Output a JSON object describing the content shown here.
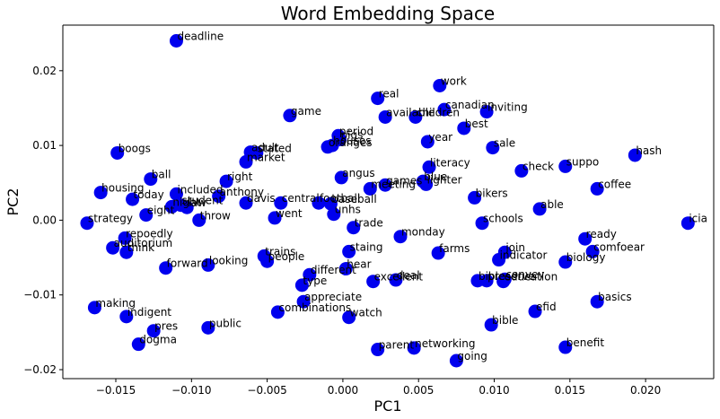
{
  "chart_data": {
    "type": "scatter",
    "title": "Word Embedding Space",
    "xlabel": "PC1",
    "ylabel": "PC2",
    "xlim": [
      -0.0185,
      0.0245
    ],
    "ylim": [
      -0.0212,
      0.0261
    ],
    "x_ticks": [
      {
        "value": -0.015,
        "label": "−0.015"
      },
      {
        "value": -0.01,
        "label": "−0.010"
      },
      {
        "value": -0.005,
        "label": "−0.005"
      },
      {
        "value": 0.0,
        "label": "0.000"
      },
      {
        "value": 0.005,
        "label": "0.005"
      },
      {
        "value": 0.01,
        "label": "0.010"
      },
      {
        "value": 0.015,
        "label": "0.015"
      },
      {
        "value": 0.02,
        "label": "0.020"
      }
    ],
    "y_ticks": [
      {
        "value": 0.02,
        "label": "0.02"
      },
      {
        "value": 0.01,
        "label": "0.01"
      },
      {
        "value": 0.0,
        "label": "0.00"
      },
      {
        "value": -0.01,
        "label": "−0.01"
      },
      {
        "value": -0.02,
        "label": "−0.02"
      }
    ],
    "grid": false,
    "marker_color": "#0000ee",
    "points": [
      {
        "label": "deadline",
        "x": -0.011,
        "y": 0.024
      },
      {
        "label": "work",
        "x": 0.0064,
        "y": 0.018
      },
      {
        "label": "real",
        "x": 0.0023,
        "y": 0.0163
      },
      {
        "label": "canadian",
        "x": 0.0067,
        "y": 0.0148
      },
      {
        "label": "inviting",
        "x": 0.0095,
        "y": 0.0145
      },
      {
        "label": "game",
        "x": -0.0035,
        "y": 0.014
      },
      {
        "label": "available",
        "x": 0.0028,
        "y": 0.0138
      },
      {
        "label": "children",
        "x": 0.0048,
        "y": 0.0138
      },
      {
        "label": "best",
        "x": 0.008,
        "y": 0.0123
      },
      {
        "label": "period",
        "x": -0.0003,
        "y": 0.0113
      },
      {
        "label": "pigs",
        "x": -0.0002,
        "y": 0.0108
      },
      {
        "label": "year",
        "x": 0.0056,
        "y": 0.0105
      },
      {
        "label": "houses",
        "x": -0.0007,
        "y": 0.01
      },
      {
        "label": "oranges",
        "x": -0.001,
        "y": 0.0098
      },
      {
        "label": "sale",
        "x": 0.0099,
        "y": 0.0097
      },
      {
        "label": "boogs",
        "x": -0.0149,
        "y": 0.009
      },
      {
        "label": "adult",
        "x": -0.0061,
        "y": 0.0091
      },
      {
        "label": "stated",
        "x": -0.0057,
        "y": 0.009
      },
      {
        "label": "market",
        "x": -0.0064,
        "y": 0.0078
      },
      {
        "label": "hash",
        "x": 0.0193,
        "y": 0.0087
      },
      {
        "label": "suppo",
        "x": 0.0147,
        "y": 0.0072
      },
      {
        "label": "literacy",
        "x": 0.0057,
        "y": 0.0071
      },
      {
        "label": "check",
        "x": 0.0118,
        "y": 0.0066
      },
      {
        "label": "ball",
        "x": -0.0127,
        "y": 0.0055
      },
      {
        "label": "angus",
        "x": -0.0001,
        "y": 0.0057
      },
      {
        "label": "right",
        "x": -0.0077,
        "y": 0.0052
      },
      {
        "label": "blue",
        "x": 0.0053,
        "y": 0.0052
      },
      {
        "label": "lighter",
        "x": 0.0055,
        "y": 0.0048
      },
      {
        "label": "games",
        "x": 0.0028,
        "y": 0.0047
      },
      {
        "label": "meeting",
        "x": 0.0018,
        "y": 0.0042
      },
      {
        "label": "coffee",
        "x": 0.0168,
        "y": 0.0042
      },
      {
        "label": "housing",
        "x": -0.016,
        "y": 0.0037
      },
      {
        "label": "included",
        "x": -0.011,
        "y": 0.0035
      },
      {
        "label": "anthony",
        "x": -0.0082,
        "y": 0.0032
      },
      {
        "label": "today",
        "x": -0.0139,
        "y": 0.0028
      },
      {
        "label": "bikers",
        "x": 0.0087,
        "y": 0.003
      },
      {
        "label": "student",
        "x": -0.0107,
        "y": 0.002
      },
      {
        "label": "night",
        "x": -0.0113,
        "y": 0.0018
      },
      {
        "label": "law",
        "x": -0.0103,
        "y": 0.0017
      },
      {
        "label": "davis",
        "x": -0.0064,
        "y": 0.0023
      },
      {
        "label": "central",
        "x": -0.0041,
        "y": 0.0023
      },
      {
        "label": "football",
        "x": -0.0016,
        "y": 0.0023
      },
      {
        "label": "baseball",
        "x": -0.0008,
        "y": 0.0022
      },
      {
        "label": "eight",
        "x": -0.013,
        "y": 0.0007
      },
      {
        "label": "able",
        "x": 0.013,
        "y": 0.0015
      },
      {
        "label": "unhs",
        "x": -0.0006,
        "y": 0.0008
      },
      {
        "label": "strategy",
        "x": -0.0169,
        "y": -0.0004
      },
      {
        "label": "throw",
        "x": -0.0095,
        "y": 0.0
      },
      {
        "label": "went",
        "x": -0.0045,
        "y": 0.0003
      },
      {
        "label": "schools",
        "x": 0.0092,
        "y": -0.0004
      },
      {
        "label": "icia",
        "x": 0.0228,
        "y": -0.0004
      },
      {
        "label": "trade",
        "x": 0.0007,
        "y": -0.001
      },
      {
        "label": "monday",
        "x": 0.0038,
        "y": -0.0022
      },
      {
        "label": "repoedly",
        "x": -0.0144,
        "y": -0.0024
      },
      {
        "label": "ready",
        "x": 0.016,
        "y": -0.0025
      },
      {
        "label": "auditorium",
        "x": -0.0152,
        "y": -0.0037
      },
      {
        "label": "think",
        "x": -0.0143,
        "y": -0.0043
      },
      {
        "label": "staing",
        "x": 0.0004,
        "y": -0.0042
      },
      {
        "label": "farms",
        "x": 0.0063,
        "y": -0.0044
      },
      {
        "label": "trains",
        "x": -0.0052,
        "y": -0.0048
      },
      {
        "label": "join",
        "x": 0.0107,
        "y": -0.0043
      },
      {
        "label": "comfoear",
        "x": 0.0165,
        "y": -0.0042
      },
      {
        "label": "indicator",
        "x": 0.0103,
        "y": -0.0053
      },
      {
        "label": "people",
        "x": -0.005,
        "y": -0.0055
      },
      {
        "label": "biology",
        "x": 0.0147,
        "y": -0.0056
      },
      {
        "label": "forward",
        "x": -0.0117,
        "y": -0.0064
      },
      {
        "label": "looking",
        "x": -0.0089,
        "y": -0.006
      },
      {
        "label": "hear",
        "x": 0.0002,
        "y": -0.0065
      },
      {
        "label": "different",
        "x": -0.0022,
        "y": -0.0073
      },
      {
        "label": "excellent",
        "x": 0.002,
        "y": -0.0082
      },
      {
        "label": "deal",
        "x": 0.0035,
        "y": -0.008
      },
      {
        "label": "bible",
        "x": 0.0089,
        "y": -0.0081
      },
      {
        "label": "preserve",
        "x": 0.0095,
        "y": -0.0081
      },
      {
        "label": "convey",
        "x": 0.0107,
        "y": -0.0079
      },
      {
        "label": "education",
        "x": 0.0106,
        "y": -0.0082
      },
      {
        "label": "type",
        "x": -0.0027,
        "y": -0.0087
      },
      {
        "label": "appreciate",
        "x": -0.0026,
        "y": -0.0109
      },
      {
        "label": "basics",
        "x": 0.0168,
        "y": -0.0109
      },
      {
        "label": "making",
        "x": -0.0164,
        "y": -0.0117
      },
      {
        "label": "combinations",
        "x": -0.0043,
        "y": -0.0123
      },
      {
        "label": "efid",
        "x": 0.0127,
        "y": -0.0122
      },
      {
        "label": "indigent",
        "x": -0.0143,
        "y": -0.0129
      },
      {
        "label": "watch",
        "x": 0.0004,
        "y": -0.013
      },
      {
        "label": "bible",
        "x": 0.0098,
        "y": -0.014
      },
      {
        "label": "public",
        "x": -0.0089,
        "y": -0.0144
      },
      {
        "label": "pres",
        "x": -0.0125,
        "y": -0.0148
      },
      {
        "label": "dogma",
        "x": -0.0135,
        "y": -0.0166
      },
      {
        "label": "benefit",
        "x": 0.0147,
        "y": -0.017
      },
      {
        "label": "networking",
        "x": 0.0047,
        "y": -0.0171
      },
      {
        "label": "parent",
        "x": 0.0023,
        "y": -0.0173
      },
      {
        "label": "going",
        "x": 0.0075,
        "y": -0.0188
      }
    ]
  }
}
